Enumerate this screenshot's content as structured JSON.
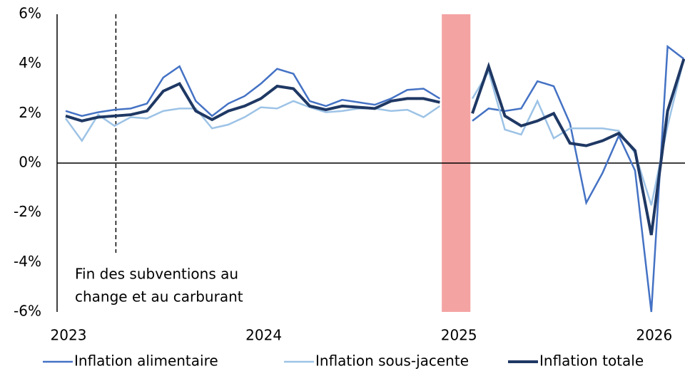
{
  "chart_data": {
    "type": "line",
    "categories": [
      "2023-01",
      "2023-02",
      "2023-03",
      "2023-04",
      "2023-05",
      "2023-06",
      "2023-07",
      "2023-08",
      "2023-09",
      "2023-10",
      "2023-11",
      "2023-12",
      "2024-01",
      "2024-02",
      "2024-03",
      "2024-04",
      "2024-05",
      "2024-06",
      "2024-07",
      "2024-08",
      "2024-09",
      "2024-10",
      "2024-11",
      "2024-12",
      "2025-01",
      "2025-02",
      "2025-03",
      "2025-04",
      "2025-05",
      "2025-06",
      "2025-07",
      "2025-08",
      "2025-09",
      "2025-10",
      "2025-11",
      "2025-12",
      "2026-01",
      "2026-02",
      "2026-03"
    ],
    "series": [
      {
        "name": "Inflation alimentaire",
        "color": "#4472c4",
        "width": 2.5,
        "values": [
          2.1,
          1.9,
          2.05,
          2.15,
          2.2,
          2.4,
          3.45,
          3.9,
          2.5,
          1.9,
          2.4,
          2.7,
          3.2,
          3.8,
          3.6,
          2.5,
          2.3,
          2.55,
          2.45,
          2.35,
          2.6,
          2.95,
          3.0,
          2.6,
          null,
          1.7,
          2.2,
          2.1,
          2.2,
          3.3,
          3.1,
          1.6,
          -1.6,
          -0.4,
          1.1,
          -0.3,
          -6.0,
          4.7,
          4.2
        ]
      },
      {
        "name": "Inflation sous-jacente",
        "color": "#9dc3e6",
        "width": 2.5,
        "values": [
          1.8,
          0.9,
          1.95,
          1.5,
          1.85,
          1.8,
          2.1,
          2.2,
          2.2,
          1.4,
          1.55,
          1.85,
          2.25,
          2.2,
          2.5,
          2.25,
          2.05,
          2.1,
          2.2,
          2.2,
          2.1,
          2.15,
          1.85,
          2.3,
          null,
          2.6,
          3.7,
          1.35,
          1.15,
          2.5,
          1.0,
          1.4,
          1.4,
          1.4,
          1.3,
          0.4,
          -1.7,
          1.5,
          4.2
        ]
      },
      {
        "name": "Inflation totale",
        "color": "#1f3864",
        "width": 4,
        "values": [
          1.9,
          1.7,
          1.85,
          1.9,
          1.95,
          2.1,
          2.9,
          3.2,
          2.1,
          1.75,
          2.1,
          2.3,
          2.6,
          3.1,
          3.0,
          2.3,
          2.15,
          2.3,
          2.25,
          2.2,
          2.5,
          2.6,
          2.6,
          2.45,
          null,
          2.0,
          3.9,
          1.9,
          1.5,
          1.7,
          2.0,
          0.8,
          0.7,
          0.9,
          1.2,
          0.5,
          -2.9,
          2.1,
          4.2
        ]
      }
    ],
    "ylim": [
      -6,
      6
    ],
    "yticks": [
      {
        "value": -6,
        "label": "-6%"
      },
      {
        "value": -4,
        "label": "-4%"
      },
      {
        "value": -2,
        "label": "-2%"
      },
      {
        "value": 0,
        "label": "0%"
      },
      {
        "value": 2,
        "label": "2%"
      },
      {
        "value": 4,
        "label": "4%"
      },
      {
        "value": 6,
        "label": "6%"
      }
    ],
    "xticks": [
      {
        "value": "2023-01",
        "label": "2023"
      },
      {
        "value": "2024-01",
        "label": "2024"
      },
      {
        "value": "2025-01",
        "label": "2025"
      },
      {
        "value": "2026-01",
        "label": "2026"
      }
    ],
    "annotation": {
      "x": "2023-04",
      "lines": [
        "Fin des subventions au",
        "change et au carburant"
      ]
    },
    "shaded": {
      "x": "2025-01",
      "color": "#f4a3a3"
    },
    "legend": "bottom"
  }
}
